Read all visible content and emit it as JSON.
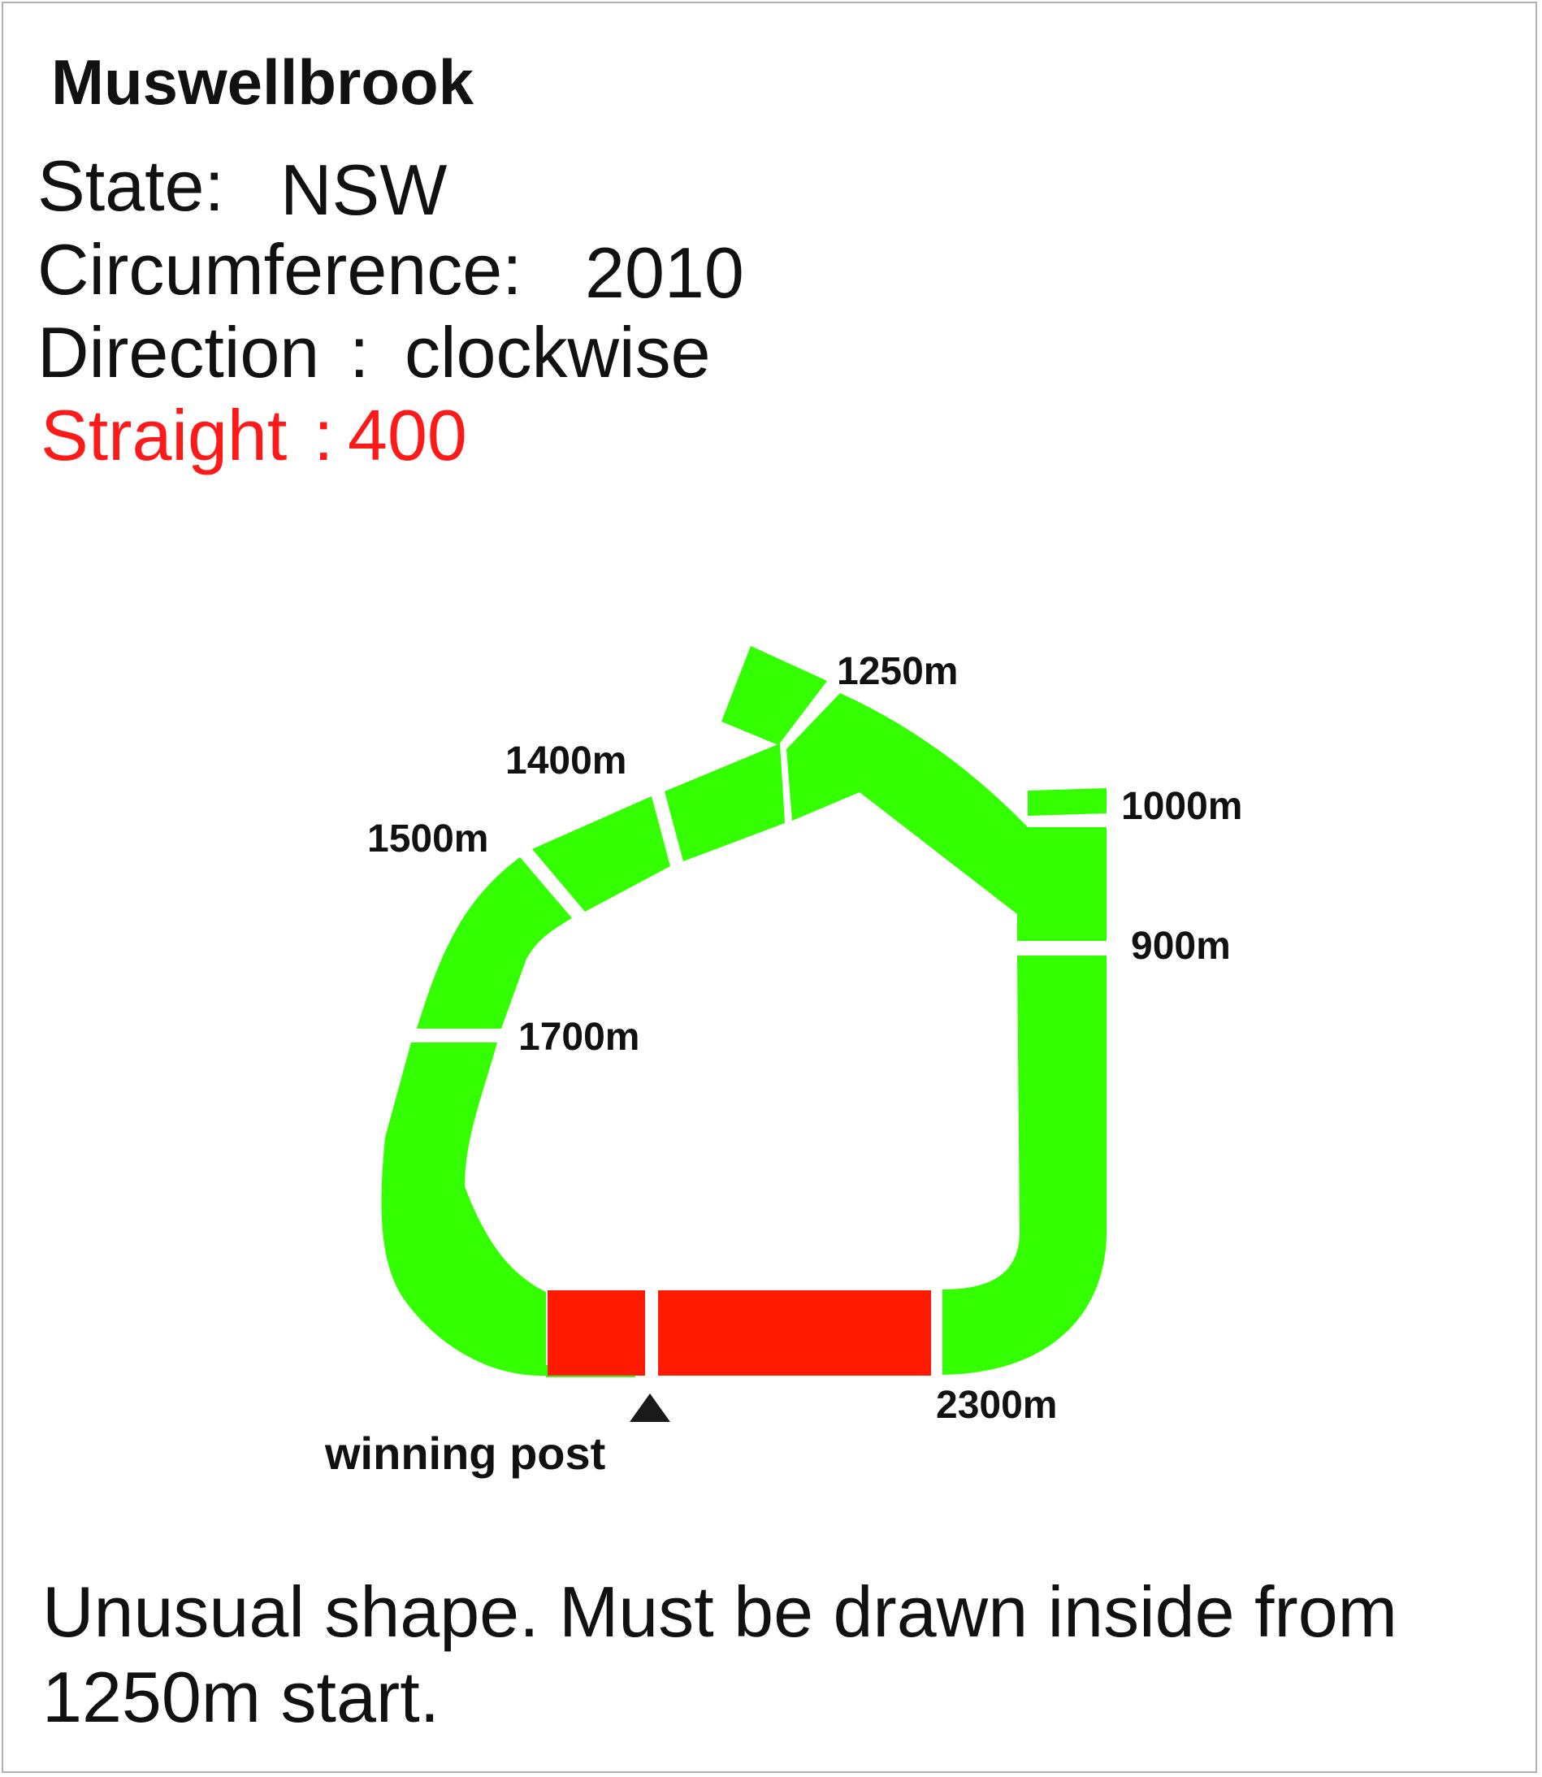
{
  "title": "Muswellbrook",
  "state": {
    "label": "State:",
    "value": "NSW"
  },
  "circumference": {
    "label": "Circumference:",
    "value": "2010"
  },
  "direction": {
    "label": "Direction",
    "colon": ":",
    "value": "clockwise"
  },
  "straight": {
    "label": "Straight",
    "colon": ":",
    "value": "400"
  },
  "colors": {
    "track": "#33ff00",
    "straight": "#ff1a00",
    "straight_text": "#ff1a1a",
    "text": "#111111"
  },
  "markers": {
    "m1250": "1250m",
    "m1400": "1400m",
    "m1500": "1500m",
    "m1000": "1000m",
    "m900": "900m",
    "m1700": "1700m",
    "m2300": "2300m"
  },
  "winning_post": {
    "label": "winning post",
    "icon": "triangle-up-icon"
  },
  "note": {
    "line1": "Unusual shape. Must be drawn inside from",
    "line2": "1250m start."
  }
}
